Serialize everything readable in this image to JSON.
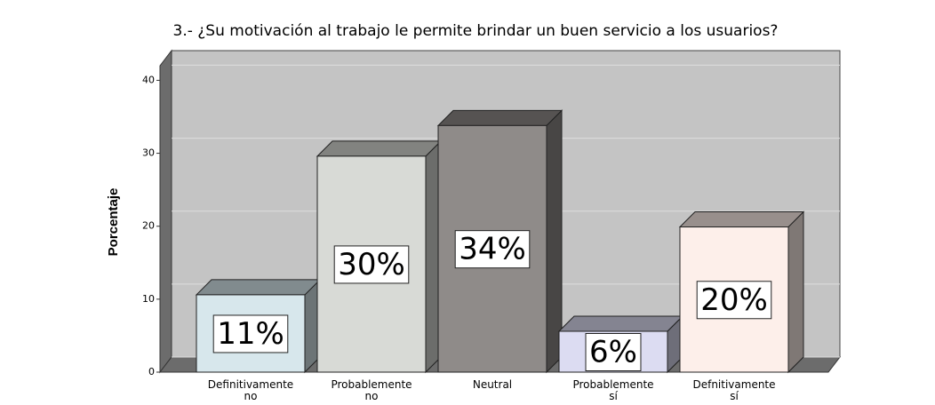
{
  "chart_data": {
    "type": "bar3d",
    "title": "3.- ¿Su motivación al trabajo le permite brindar un buen servicio a los usuarios?",
    "y_label": "Porcentaje",
    "categories": [
      "Definitivamente no",
      "Probablemente no",
      "Neutral",
      "Probablemente sí",
      "Defnitivamente sí"
    ],
    "values": [
      10.6,
      29.6,
      33.8,
      5.6,
      19.9
    ],
    "value_labels": [
      "11%",
      "30%",
      "34%",
      "6%",
      "20%"
    ],
    "colors": [
      "#d7e7ec",
      "#d8dad6",
      "#8f8b89",
      "#dcdcf2",
      "#fdefea"
    ],
    "ylim": [
      0,
      42
    ],
    "yticks": [
      0,
      10,
      20,
      30,
      40
    ],
    "grid": true
  }
}
